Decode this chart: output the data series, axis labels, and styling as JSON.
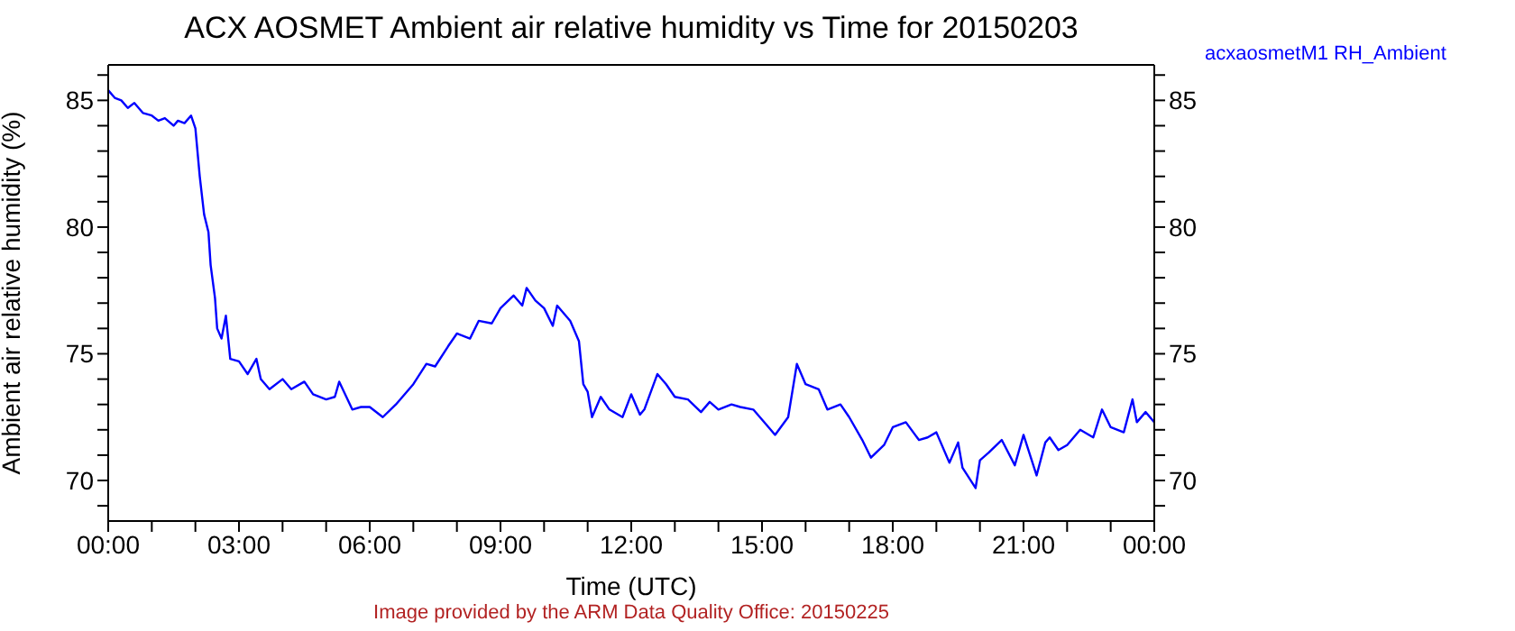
{
  "chart_data": {
    "type": "line",
    "title": "ACX AOSMET Ambient air relative humidity vs Time for 20150203",
    "xlabel": "Time (UTC)",
    "ylabel": "Ambient air relative humidity (%)",
    "legend": "top right",
    "annotations": [
      "Image provided by the ARM Data Quality Office: 20150225"
    ],
    "xlim": [
      0,
      24
    ],
    "xticks": [
      {
        "value": 0,
        "label": "00:00"
      },
      {
        "value": 1,
        "label": null
      },
      {
        "value": 2,
        "label": null
      },
      {
        "value": 3,
        "label": "03:00"
      },
      {
        "value": 4,
        "label": null
      },
      {
        "value": 5,
        "label": null
      },
      {
        "value": 6,
        "label": "06:00"
      },
      {
        "value": 7,
        "label": null
      },
      {
        "value": 8,
        "label": null
      },
      {
        "value": 9,
        "label": "09:00"
      },
      {
        "value": 10,
        "label": null
      },
      {
        "value": 11,
        "label": null
      },
      {
        "value": 12,
        "label": "12:00"
      },
      {
        "value": 13,
        "label": null
      },
      {
        "value": 14,
        "label": null
      },
      {
        "value": 15,
        "label": "15:00"
      },
      {
        "value": 16,
        "label": null
      },
      {
        "value": 17,
        "label": null
      },
      {
        "value": 18,
        "label": "18:00"
      },
      {
        "value": 19,
        "label": null
      },
      {
        "value": 20,
        "label": null
      },
      {
        "value": 21,
        "label": "21:00"
      },
      {
        "value": 22,
        "label": null
      },
      {
        "value": 23,
        "label": null
      },
      {
        "value": 24,
        "label": "00:00"
      }
    ],
    "ylim": [
      68.4,
      86.4
    ],
    "yticks": [
      {
        "value": 69,
        "label": null
      },
      70,
      {
        "value": 71,
        "label": null
      },
      {
        "value": 72,
        "label": null
      },
      {
        "value": 73,
        "label": null
      },
      {
        "value": 74,
        "label": null
      },
      75,
      {
        "value": 76,
        "label": null
      },
      {
        "value": 77,
        "label": null
      },
      {
        "value": 78,
        "label": null
      },
      {
        "value": 79,
        "label": null
      },
      80,
      {
        "value": 81,
        "label": null
      },
      {
        "value": 82,
        "label": null
      },
      {
        "value": 83,
        "label": null
      },
      {
        "value": 84,
        "label": null
      },
      85,
      {
        "value": 86,
        "label": null
      }
    ],
    "y2lim": [
      68.4,
      86.4
    ],
    "y2ticks": [
      {
        "value": 69,
        "label": null
      },
      70,
      {
        "value": 71,
        "label": null
      },
      {
        "value": 72,
        "label": null
      },
      {
        "value": 73,
        "label": null
      },
      {
        "value": 74,
        "label": null
      },
      75,
      {
        "value": 76,
        "label": null
      },
      {
        "value": 77,
        "label": null
      },
      {
        "value": 78,
        "label": null
      },
      {
        "value": 79,
        "label": null
      },
      80,
      {
        "value": 81,
        "label": null
      },
      {
        "value": 82,
        "label": null
      },
      {
        "value": 83,
        "label": null
      },
      {
        "value": 84,
        "label": null
      },
      85,
      {
        "value": 86,
        "label": null
      }
    ],
    "series": [
      {
        "name": "acxaosmetM1 RH_Ambient",
        "color": "#0000ff",
        "x": [
          0,
          0.15,
          0.3,
          0.45,
          0.6,
          0.8,
          1,
          1.15,
          1.3,
          1.5,
          1.6,
          1.75,
          1.9,
          2,
          2.1,
          2.2,
          2.3,
          2.35,
          2.45,
          2.5,
          2.6,
          2.7,
          2.8,
          3,
          3.2,
          3.4,
          3.5,
          3.7,
          4,
          4.2,
          4.5,
          4.7,
          5,
          5.2,
          5.3,
          5.6,
          5.8,
          6,
          6.3,
          6.6,
          7,
          7.3,
          7.5,
          7.8,
          8,
          8.3,
          8.5,
          8.8,
          9,
          9.3,
          9.5,
          9.6,
          9.8,
          10,
          10.2,
          10.3,
          10.6,
          10.8,
          10.9,
          11,
          11.1,
          11.3,
          11.5,
          11.8,
          12,
          12.2,
          12.3,
          12.6,
          12.8,
          13,
          13.3,
          13.6,
          13.8,
          14,
          14.3,
          14.5,
          14.8,
          15,
          15.2,
          15.3,
          15.6,
          15.8,
          16,
          16.3,
          16.5,
          16.8,
          17,
          17.3,
          17.5,
          17.8,
          18,
          18.3,
          18.6,
          18.8,
          19,
          19.3,
          19.5,
          19.6,
          19.9,
          20,
          20.2,
          20.5,
          20.8,
          21,
          21.3,
          21.5,
          21.6,
          21.8,
          22,
          22.3,
          22.6,
          22.8,
          23,
          23.3,
          23.5,
          23.6,
          23.8,
          24
        ],
        "values": [
          85.4,
          85.1,
          85,
          84.7,
          84.9,
          84.5,
          84.4,
          84.2,
          84.3,
          84,
          84.2,
          84.1,
          84.4,
          83.9,
          82,
          80.5,
          79.8,
          78.5,
          77.2,
          76,
          75.6,
          76.5,
          74.8,
          74.7,
          74.2,
          74.8,
          74,
          73.6,
          74,
          73.6,
          73.9,
          73.4,
          73.2,
          73.3,
          73.9,
          72.8,
          72.9,
          72.9,
          72.5,
          73,
          73.8,
          74.6,
          74.5,
          75.3,
          75.8,
          75.6,
          76.3,
          76.2,
          76.8,
          77.3,
          76.9,
          77.6,
          77.1,
          76.8,
          76.1,
          76.9,
          76.3,
          75.5,
          73.8,
          73.5,
          72.5,
          73.3,
          72.8,
          72.5,
          73.4,
          72.6,
          72.8,
          74.2,
          73.8,
          73.3,
          73.2,
          72.7,
          73.1,
          72.8,
          73,
          72.9,
          72.8,
          72.4,
          72,
          71.8,
          72.5,
          74.6,
          73.8,
          73.6,
          72.8,
          73,
          72.5,
          71.6,
          70.9,
          71.4,
          72.1,
          72.3,
          71.6,
          71.7,
          71.9,
          70.7,
          71.5,
          70.5,
          69.7,
          70.8,
          71.1,
          71.6,
          70.6,
          71.8,
          70.2,
          71.5,
          71.7,
          71.2,
          71.4,
          72,
          71.7,
          72.8,
          72.1,
          71.9,
          73.2,
          72.3,
          72.7,
          72.3
        ]
      }
    ]
  }
}
